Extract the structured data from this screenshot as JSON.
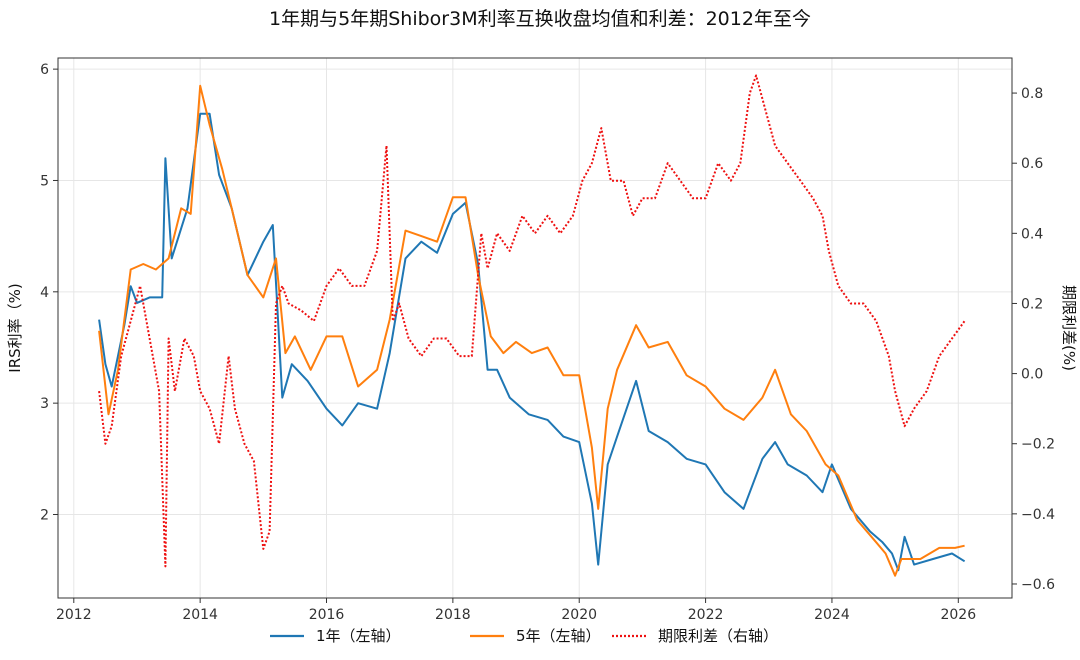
{
  "chart_data": {
    "type": "line",
    "title": "1年期与5年期Shibor3M利率互换收盘均值和利差：2012年至今",
    "xlabel": "",
    "ylabel_left": "IRS利率（%)",
    "ylabel_right": "期限利差(%)",
    "xlim": [
      2011.75,
      2026.85
    ],
    "ylim_left": [
      1.25,
      6.1
    ],
    "ylim_right": [
      -0.64,
      0.9
    ],
    "x_ticks": [
      2012,
      2014,
      2016,
      2018,
      2020,
      2022,
      2024,
      2026
    ],
    "y_left_ticks": [
      2,
      3,
      4,
      5,
      6
    ],
    "y_right_ticks": [
      -0.6,
      -0.4,
      -0.2,
      0.0,
      0.2,
      0.4,
      0.6,
      0.8
    ],
    "y_right_tick_labels": [
      "−0.6",
      "−0.4",
      "−0.2",
      "0.0",
      "0.2",
      "0.4",
      "0.6",
      "0.8"
    ],
    "grid": true,
    "legend_position": "bottom-center",
    "series": [
      {
        "name": "1年（左轴）",
        "axis": "left",
        "color": "#1f77b4",
        "style": "solid",
        "x": [
          2012.4,
          2012.5,
          2012.6,
          2012.8,
          2012.9,
          2013.0,
          2013.2,
          2013.4,
          2013.45,
          2013.55,
          2013.8,
          2014.0,
          2014.15,
          2014.3,
          2014.5,
          2014.75,
          2015.0,
          2015.15,
          2015.3,
          2015.45,
          2015.7,
          2016.0,
          2016.25,
          2016.5,
          2016.8,
          2017.0,
          2017.25,
          2017.5,
          2017.75,
          2018.0,
          2018.2,
          2018.4,
          2018.55,
          2018.7,
          2018.9,
          2019.2,
          2019.5,
          2019.75,
          2020.0,
          2020.2,
          2020.3,
          2020.45,
          2020.6,
          2020.9,
          2021.1,
          2021.4,
          2021.7,
          2022.0,
          2022.3,
          2022.6,
          2022.9,
          2023.1,
          2023.3,
          2023.6,
          2023.85,
          2024.0,
          2024.3,
          2024.6,
          2024.8,
          2024.95,
          2025.05,
          2025.15,
          2025.3,
          2025.6,
          2025.9,
          2026.1
        ],
        "values": [
          3.75,
          3.35,
          3.15,
          3.7,
          4.05,
          3.9,
          3.95,
          3.95,
          5.2,
          4.3,
          4.75,
          5.6,
          5.6,
          5.05,
          4.75,
          4.15,
          4.45,
          4.6,
          3.05,
          3.35,
          3.2,
          2.95,
          2.8,
          3.0,
          2.95,
          3.45,
          4.3,
          4.45,
          4.35,
          4.7,
          4.8,
          4.25,
          3.3,
          3.3,
          3.05,
          2.9,
          2.85,
          2.7,
          2.65,
          2.1,
          1.55,
          2.45,
          2.7,
          3.2,
          2.75,
          2.65,
          2.5,
          2.45,
          2.2,
          2.05,
          2.5,
          2.65,
          2.45,
          2.35,
          2.2,
          2.45,
          2.05,
          1.85,
          1.75,
          1.65,
          1.5,
          1.8,
          1.55,
          1.6,
          1.65,
          1.58
        ]
      },
      {
        "name": "5年（左轴）",
        "axis": "left",
        "color": "#ff7f0e",
        "style": "solid",
        "x": [
          2012.4,
          2012.55,
          2012.7,
          2012.9,
          2013.1,
          2013.3,
          2013.5,
          2013.7,
          2013.85,
          2014.0,
          2014.15,
          2014.35,
          2014.5,
          2014.75,
          2015.0,
          2015.2,
          2015.35,
          2015.5,
          2015.75,
          2016.0,
          2016.25,
          2016.5,
          2016.8,
          2017.0,
          2017.25,
          2017.5,
          2017.75,
          2018.0,
          2018.2,
          2018.4,
          2018.6,
          2018.8,
          2019.0,
          2019.25,
          2019.5,
          2019.75,
          2020.0,
          2020.2,
          2020.3,
          2020.45,
          2020.6,
          2020.9,
          2021.1,
          2021.4,
          2021.7,
          2022.0,
          2022.3,
          2022.6,
          2022.9,
          2023.1,
          2023.35,
          2023.6,
          2023.9,
          2024.1,
          2024.4,
          2024.7,
          2024.85,
          2025.0,
          2025.1,
          2025.2,
          2025.4,
          2025.7,
          2025.95,
          2026.1
        ],
        "values": [
          3.65,
          2.9,
          3.3,
          4.2,
          4.25,
          4.2,
          4.3,
          4.75,
          4.7,
          5.85,
          5.5,
          5.1,
          4.75,
          4.15,
          3.95,
          4.3,
          3.45,
          3.6,
          3.3,
          3.6,
          3.6,
          3.15,
          3.3,
          3.75,
          4.55,
          4.5,
          4.45,
          4.85,
          4.85,
          4.15,
          3.6,
          3.45,
          3.55,
          3.45,
          3.5,
          3.25,
          3.25,
          2.6,
          2.05,
          2.95,
          3.3,
          3.7,
          3.5,
          3.55,
          3.25,
          3.15,
          2.95,
          2.85,
          3.05,
          3.3,
          2.9,
          2.75,
          2.45,
          2.35,
          1.95,
          1.75,
          1.65,
          1.45,
          1.6,
          1.6,
          1.6,
          1.7,
          1.7,
          1.72
        ]
      },
      {
        "name": "期限利差（右轴）",
        "axis": "right",
        "color": "#ee1111",
        "style": "dotted",
        "x": [
          2012.4,
          2012.5,
          2012.6,
          2012.75,
          2012.9,
          2013.05,
          2013.2,
          2013.35,
          2013.45,
          2013.5,
          2013.6,
          2013.75,
          2013.9,
          2014.0,
          2014.15,
          2014.3,
          2014.45,
          2014.55,
          2014.7,
          2014.85,
          2015.0,
          2015.1,
          2015.2,
          2015.3,
          2015.4,
          2015.6,
          2015.8,
          2016.0,
          2016.2,
          2016.4,
          2016.6,
          2016.8,
          2016.95,
          2017.05,
          2017.15,
          2017.3,
          2017.5,
          2017.7,
          2017.9,
          2018.1,
          2018.3,
          2018.45,
          2018.55,
          2018.7,
          2018.9,
          2019.1,
          2019.3,
          2019.5,
          2019.7,
          2019.9,
          2020.05,
          2020.2,
          2020.35,
          2020.5,
          2020.7,
          2020.85,
          2021.0,
          2021.2,
          2021.4,
          2021.6,
          2021.8,
          2022.0,
          2022.2,
          2022.4,
          2022.55,
          2022.7,
          2022.8,
          2022.95,
          2023.1,
          2023.3,
          2023.5,
          2023.7,
          2023.85,
          2023.95,
          2024.1,
          2024.3,
          2024.5,
          2024.7,
          2024.9,
          2025.0,
          2025.15,
          2025.3,
          2025.5,
          2025.7,
          2025.9,
          2026.1
        ],
        "values": [
          -0.05,
          -0.2,
          -0.15,
          0.05,
          0.15,
          0.25,
          0.1,
          -0.05,
          -0.55,
          0.1,
          -0.05,
          0.1,
          0.05,
          -0.05,
          -0.1,
          -0.2,
          0.05,
          -0.1,
          -0.2,
          -0.25,
          -0.5,
          -0.45,
          0.2,
          0.25,
          0.2,
          0.18,
          0.15,
          0.25,
          0.3,
          0.25,
          0.25,
          0.35,
          0.65,
          0.15,
          0.2,
          0.1,
          0.05,
          0.1,
          0.1,
          0.05,
          0.05,
          0.4,
          0.3,
          0.4,
          0.35,
          0.45,
          0.4,
          0.45,
          0.4,
          0.45,
          0.55,
          0.6,
          0.7,
          0.55,
          0.55,
          0.45,
          0.5,
          0.5,
          0.6,
          0.55,
          0.5,
          0.5,
          0.6,
          0.55,
          0.6,
          0.8,
          0.85,
          0.75,
          0.65,
          0.6,
          0.55,
          0.5,
          0.45,
          0.35,
          0.25,
          0.2,
          0.2,
          0.15,
          0.05,
          -0.05,
          -0.15,
          -0.1,
          -0.05,
          0.05,
          0.1,
          0.15
        ]
      }
    ]
  }
}
